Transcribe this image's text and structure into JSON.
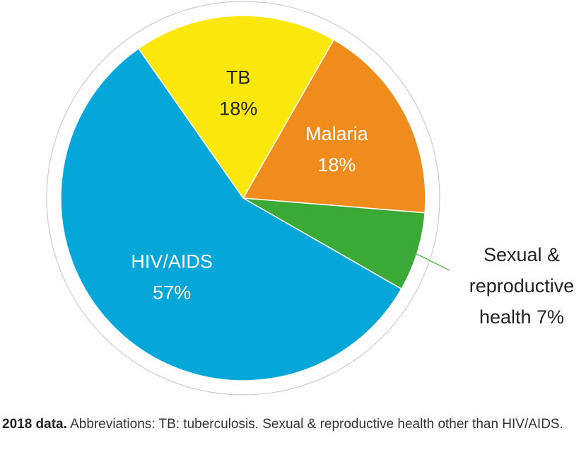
{
  "chart_data": {
    "type": "pie",
    "start_angle_deg": 325,
    "slices": [
      {
        "name": "TB",
        "value": 18,
        "label_lines": [
          "TB",
          "18%"
        ],
        "color": "#FAE80D",
        "label_inside": true,
        "dark_text": true
      },
      {
        "name": "Malaria",
        "value": 18,
        "label_lines": [
          "Malaria",
          "18%"
        ],
        "color": "#F08C1C",
        "label_inside": true,
        "dark_text": false
      },
      {
        "name": "Sexual & reproductive health",
        "value": 7,
        "label_lines": [
          "Sexual &",
          "reproductive",
          "health 7%"
        ],
        "color": "#3BA935",
        "label_inside": false,
        "dark_text": true
      },
      {
        "name": "HIV/AIDS",
        "value": 57,
        "label_lines": [
          "HIV/AIDS",
          "57%"
        ],
        "color": "#05A6D8",
        "label_inside": true,
        "dark_text": false
      }
    ],
    "leader_line_color": "#3BA935",
    "outline_color": "#cccccc"
  },
  "caption": {
    "bold": "2018 data.",
    "text": " Abbreviations: TB: tuberculosis. Sexual & reproductive health other than HIV/AIDS."
  }
}
